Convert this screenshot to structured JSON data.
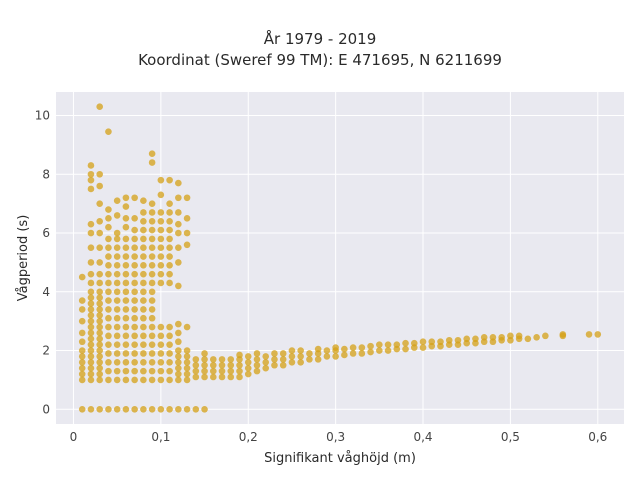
{
  "chart_data": {
    "type": "scatter",
    "title_line1": "År 1979 - 2019",
    "title_line2": "Koordinat (Sweref 99 TM): E 471695, N 6211699",
    "xlabel": "Signifikant våghöjd (m)",
    "ylabel": "Vågperiod (s)",
    "xlim": [
      -0.02,
      0.63
    ],
    "ylim": [
      -0.5,
      10.8
    ],
    "x_ticks": [
      0,
      0.1,
      0.2,
      0.3,
      0.4,
      0.5,
      0.6
    ],
    "x_tick_labels": [
      "0",
      "0,1",
      "0,2",
      "0,3",
      "0,4",
      "0,5",
      "0,6"
    ],
    "y_ticks": [
      0,
      2,
      4,
      6,
      8,
      10
    ],
    "y_tick_labels": [
      "0",
      "2",
      "4",
      "6",
      "8",
      "10"
    ],
    "grid": true,
    "plot_background": "#e9e9f0",
    "marker_color": "#d4a017",
    "points": [
      [
        0.01,
        0
      ],
      [
        0.02,
        0
      ],
      [
        0.03,
        0
      ],
      [
        0.04,
        0
      ],
      [
        0.05,
        0
      ],
      [
        0.06,
        0
      ],
      [
        0.07,
        0
      ],
      [
        0.08,
        0
      ],
      [
        0.09,
        0
      ],
      [
        0.1,
        0
      ],
      [
        0.11,
        0
      ],
      [
        0.12,
        0
      ],
      [
        0.13,
        0
      ],
      [
        0.14,
        0
      ],
      [
        0.15,
        0
      ],
      [
        0.01,
        1.0
      ],
      [
        0.01,
        1.2
      ],
      [
        0.01,
        1.4
      ],
      [
        0.01,
        1.6
      ],
      [
        0.01,
        1.8
      ],
      [
        0.01,
        2.0
      ],
      [
        0.01,
        2.3
      ],
      [
        0.01,
        2.6
      ],
      [
        0.01,
        3.0
      ],
      [
        0.01,
        3.4
      ],
      [
        0.01,
        3.7
      ],
      [
        0.01,
        4.5
      ],
      [
        0.02,
        1.0
      ],
      [
        0.02,
        1.2
      ],
      [
        0.02,
        1.4
      ],
      [
        0.02,
        1.6
      ],
      [
        0.02,
        1.8
      ],
      [
        0.02,
        2.0
      ],
      [
        0.02,
        2.2
      ],
      [
        0.02,
        2.4
      ],
      [
        0.02,
        2.6
      ],
      [
        0.02,
        2.8
      ],
      [
        0.02,
        3.0
      ],
      [
        0.02,
        3.2
      ],
      [
        0.02,
        3.4
      ],
      [
        0.02,
        3.6
      ],
      [
        0.02,
        3.8
      ],
      [
        0.02,
        4.0
      ],
      [
        0.02,
        4.3
      ],
      [
        0.02,
        4.6
      ],
      [
        0.02,
        5.0
      ],
      [
        0.02,
        5.5
      ],
      [
        0.02,
        6.0
      ],
      [
        0.02,
        6.3
      ],
      [
        0.02,
        7.5
      ],
      [
        0.02,
        7.8
      ],
      [
        0.02,
        8.0
      ],
      [
        0.02,
        8.3
      ],
      [
        0.03,
        1.0
      ],
      [
        0.03,
        1.2
      ],
      [
        0.03,
        1.4
      ],
      [
        0.03,
        1.6
      ],
      [
        0.03,
        1.8
      ],
      [
        0.03,
        2.0
      ],
      [
        0.03,
        2.2
      ],
      [
        0.03,
        2.4
      ],
      [
        0.03,
        2.6
      ],
      [
        0.03,
        2.8
      ],
      [
        0.03,
        3.0
      ],
      [
        0.03,
        3.2
      ],
      [
        0.03,
        3.4
      ],
      [
        0.03,
        3.6
      ],
      [
        0.03,
        3.8
      ],
      [
        0.03,
        4.0
      ],
      [
        0.03,
        4.3
      ],
      [
        0.03,
        4.6
      ],
      [
        0.03,
        5.0
      ],
      [
        0.03,
        5.5
      ],
      [
        0.03,
        6.0
      ],
      [
        0.03,
        6.4
      ],
      [
        0.03,
        7.0
      ],
      [
        0.03,
        7.6
      ],
      [
        0.03,
        8.0
      ],
      [
        0.03,
        10.3
      ],
      [
        0.04,
        1.0
      ],
      [
        0.04,
        1.3
      ],
      [
        0.04,
        1.6
      ],
      [
        0.04,
        1.9
      ],
      [
        0.04,
        2.2
      ],
      [
        0.04,
        2.5
      ],
      [
        0.04,
        2.8
      ],
      [
        0.04,
        3.1
      ],
      [
        0.04,
        3.4
      ],
      [
        0.04,
        3.7
      ],
      [
        0.04,
        4.0
      ],
      [
        0.04,
        4.3
      ],
      [
        0.04,
        4.6
      ],
      [
        0.04,
        4.9
      ],
      [
        0.04,
        5.2
      ],
      [
        0.04,
        5.5
      ],
      [
        0.04,
        5.8
      ],
      [
        0.04,
        6.2
      ],
      [
        0.04,
        6.5
      ],
      [
        0.04,
        6.8
      ],
      [
        0.04,
        9.45
      ],
      [
        0.05,
        1.0
      ],
      [
        0.05,
        1.3
      ],
      [
        0.05,
        1.6
      ],
      [
        0.05,
        1.9
      ],
      [
        0.05,
        2.2
      ],
      [
        0.05,
        2.5
      ],
      [
        0.05,
        2.8
      ],
      [
        0.05,
        3.1
      ],
      [
        0.05,
        3.4
      ],
      [
        0.05,
        3.7
      ],
      [
        0.05,
        4.0
      ],
      [
        0.05,
        4.3
      ],
      [
        0.05,
        4.6
      ],
      [
        0.05,
        4.9
      ],
      [
        0.05,
        5.2
      ],
      [
        0.05,
        5.5
      ],
      [
        0.05,
        5.8
      ],
      [
        0.05,
        6.0
      ],
      [
        0.05,
        6.6
      ],
      [
        0.05,
        7.1
      ],
      [
        0.06,
        1.0
      ],
      [
        0.06,
        1.3
      ],
      [
        0.06,
        1.6
      ],
      [
        0.06,
        1.9
      ],
      [
        0.06,
        2.2
      ],
      [
        0.06,
        2.5
      ],
      [
        0.06,
        2.8
      ],
      [
        0.06,
        3.1
      ],
      [
        0.06,
        3.4
      ],
      [
        0.06,
        3.7
      ],
      [
        0.06,
        4.0
      ],
      [
        0.06,
        4.3
      ],
      [
        0.06,
        4.6
      ],
      [
        0.06,
        4.9
      ],
      [
        0.06,
        5.2
      ],
      [
        0.06,
        5.5
      ],
      [
        0.06,
        5.8
      ],
      [
        0.06,
        6.2
      ],
      [
        0.06,
        6.5
      ],
      [
        0.06,
        6.9
      ],
      [
        0.06,
        7.2
      ],
      [
        0.07,
        1.0
      ],
      [
        0.07,
        1.3
      ],
      [
        0.07,
        1.6
      ],
      [
        0.07,
        1.9
      ],
      [
        0.07,
        2.2
      ],
      [
        0.07,
        2.5
      ],
      [
        0.07,
        2.8
      ],
      [
        0.07,
        3.1
      ],
      [
        0.07,
        3.4
      ],
      [
        0.07,
        3.7
      ],
      [
        0.07,
        4.0
      ],
      [
        0.07,
        4.3
      ],
      [
        0.07,
        4.6
      ],
      [
        0.07,
        4.9
      ],
      [
        0.07,
        5.2
      ],
      [
        0.07,
        5.5
      ],
      [
        0.07,
        5.8
      ],
      [
        0.07,
        6.1
      ],
      [
        0.07,
        6.5
      ],
      [
        0.07,
        7.2
      ],
      [
        0.08,
        1.0
      ],
      [
        0.08,
        1.3
      ],
      [
        0.08,
        1.6
      ],
      [
        0.08,
        1.9
      ],
      [
        0.08,
        2.2
      ],
      [
        0.08,
        2.5
      ],
      [
        0.08,
        2.8
      ],
      [
        0.08,
        3.1
      ],
      [
        0.08,
        3.4
      ],
      [
        0.08,
        3.7
      ],
      [
        0.08,
        4.0
      ],
      [
        0.08,
        4.3
      ],
      [
        0.08,
        4.6
      ],
      [
        0.08,
        4.9
      ],
      [
        0.08,
        5.2
      ],
      [
        0.08,
        5.5
      ],
      [
        0.08,
        5.8
      ],
      [
        0.08,
        6.1
      ],
      [
        0.08,
        6.4
      ],
      [
        0.08,
        6.7
      ],
      [
        0.08,
        7.1
      ],
      [
        0.09,
        1.0
      ],
      [
        0.09,
        1.3
      ],
      [
        0.09,
        1.6
      ],
      [
        0.09,
        1.9
      ],
      [
        0.09,
        2.2
      ],
      [
        0.09,
        2.5
      ],
      [
        0.09,
        2.8
      ],
      [
        0.09,
        3.1
      ],
      [
        0.09,
        3.4
      ],
      [
        0.09,
        3.7
      ],
      [
        0.09,
        4.0
      ],
      [
        0.09,
        4.3
      ],
      [
        0.09,
        4.6
      ],
      [
        0.09,
        4.9
      ],
      [
        0.09,
        5.2
      ],
      [
        0.09,
        5.5
      ],
      [
        0.09,
        5.8
      ],
      [
        0.09,
        6.1
      ],
      [
        0.09,
        6.4
      ],
      [
        0.09,
        6.7
      ],
      [
        0.09,
        7.0
      ],
      [
        0.09,
        8.4
      ],
      [
        0.09,
        8.7
      ],
      [
        0.1,
        1.0
      ],
      [
        0.1,
        1.3
      ],
      [
        0.1,
        1.6
      ],
      [
        0.1,
        1.9
      ],
      [
        0.1,
        2.2
      ],
      [
        0.1,
        2.5
      ],
      [
        0.1,
        2.8
      ],
      [
        0.1,
        4.3
      ],
      [
        0.1,
        4.6
      ],
      [
        0.1,
        4.9
      ],
      [
        0.1,
        5.2
      ],
      [
        0.1,
        5.5
      ],
      [
        0.1,
        5.8
      ],
      [
        0.1,
        6.1
      ],
      [
        0.1,
        6.4
      ],
      [
        0.1,
        6.7
      ],
      [
        0.1,
        7.3
      ],
      [
        0.1,
        7.8
      ],
      [
        0.11,
        1.0
      ],
      [
        0.11,
        1.3
      ],
      [
        0.11,
        1.6
      ],
      [
        0.11,
        1.9
      ],
      [
        0.11,
        2.2
      ],
      [
        0.11,
        2.5
      ],
      [
        0.11,
        2.8
      ],
      [
        0.11,
        4.3
      ],
      [
        0.11,
        4.6
      ],
      [
        0.11,
        4.9
      ],
      [
        0.11,
        5.2
      ],
      [
        0.11,
        5.5
      ],
      [
        0.11,
        5.8
      ],
      [
        0.11,
        6.1
      ],
      [
        0.11,
        6.4
      ],
      [
        0.11,
        6.7
      ],
      [
        0.11,
        7.0
      ],
      [
        0.11,
        7.8
      ],
      [
        0.12,
        1.0
      ],
      [
        0.12,
        1.2
      ],
      [
        0.12,
        1.4
      ],
      [
        0.12,
        1.6
      ],
      [
        0.12,
        1.8
      ],
      [
        0.12,
        2.0
      ],
      [
        0.12,
        2.3
      ],
      [
        0.12,
        2.6
      ],
      [
        0.12,
        2.9
      ],
      [
        0.12,
        4.2
      ],
      [
        0.12,
        5.0
      ],
      [
        0.12,
        5.5
      ],
      [
        0.12,
        6.0
      ],
      [
        0.12,
        6.3
      ],
      [
        0.12,
        6.7
      ],
      [
        0.12,
        7.2
      ],
      [
        0.12,
        7.7
      ],
      [
        0.13,
        1.0
      ],
      [
        0.13,
        1.2
      ],
      [
        0.13,
        1.4
      ],
      [
        0.13,
        1.6
      ],
      [
        0.13,
        1.8
      ],
      [
        0.13,
        2.0
      ],
      [
        0.13,
        2.8
      ],
      [
        0.13,
        5.6
      ],
      [
        0.13,
        6.0
      ],
      [
        0.13,
        6.5
      ],
      [
        0.13,
        7.2
      ],
      [
        0.14,
        1.1
      ],
      [
        0.14,
        1.3
      ],
      [
        0.14,
        1.5
      ],
      [
        0.14,
        1.7
      ],
      [
        0.15,
        1.1
      ],
      [
        0.15,
        1.3
      ],
      [
        0.15,
        1.5
      ],
      [
        0.15,
        1.7
      ],
      [
        0.15,
        1.9
      ],
      [
        0.16,
        1.1
      ],
      [
        0.16,
        1.3
      ],
      [
        0.16,
        1.5
      ],
      [
        0.16,
        1.7
      ],
      [
        0.17,
        1.1
      ],
      [
        0.17,
        1.3
      ],
      [
        0.17,
        1.5
      ],
      [
        0.17,
        1.7
      ],
      [
        0.18,
        1.1
      ],
      [
        0.18,
        1.3
      ],
      [
        0.18,
        1.5
      ],
      [
        0.18,
        1.7
      ],
      [
        0.19,
        1.1
      ],
      [
        0.19,
        1.3
      ],
      [
        0.19,
        1.5
      ],
      [
        0.19,
        1.7
      ],
      [
        0.19,
        1.85
      ],
      [
        0.2,
        1.2
      ],
      [
        0.2,
        1.4
      ],
      [
        0.2,
        1.6
      ],
      [
        0.2,
        1.8
      ],
      [
        0.21,
        1.3
      ],
      [
        0.21,
        1.5
      ],
      [
        0.21,
        1.7
      ],
      [
        0.21,
        1.9
      ],
      [
        0.22,
        1.4
      ],
      [
        0.22,
        1.6
      ],
      [
        0.22,
        1.8
      ],
      [
        0.23,
        1.5
      ],
      [
        0.23,
        1.7
      ],
      [
        0.23,
        1.9
      ],
      [
        0.24,
        1.5
      ],
      [
        0.24,
        1.7
      ],
      [
        0.24,
        1.9
      ],
      [
        0.25,
        1.6
      ],
      [
        0.25,
        1.8
      ],
      [
        0.25,
        2.0
      ],
      [
        0.26,
        1.6
      ],
      [
        0.26,
        1.8
      ],
      [
        0.26,
        2.0
      ],
      [
        0.27,
        1.7
      ],
      [
        0.27,
        1.9
      ],
      [
        0.28,
        1.7
      ],
      [
        0.28,
        1.9
      ],
      [
        0.28,
        2.05
      ],
      [
        0.29,
        1.8
      ],
      [
        0.29,
        2.0
      ],
      [
        0.3,
        1.8
      ],
      [
        0.3,
        2.0
      ],
      [
        0.3,
        2.1
      ],
      [
        0.31,
        1.85
      ],
      [
        0.31,
        2.05
      ],
      [
        0.32,
        1.9
      ],
      [
        0.32,
        2.1
      ],
      [
        0.33,
        1.9
      ],
      [
        0.33,
        2.1
      ],
      [
        0.34,
        1.95
      ],
      [
        0.34,
        2.15
      ],
      [
        0.35,
        2.0
      ],
      [
        0.35,
        2.2
      ],
      [
        0.36,
        2.0
      ],
      [
        0.36,
        2.2
      ],
      [
        0.37,
        2.05
      ],
      [
        0.37,
        2.2
      ],
      [
        0.38,
        2.05
      ],
      [
        0.38,
        2.25
      ],
      [
        0.39,
        2.1
      ],
      [
        0.39,
        2.25
      ],
      [
        0.4,
        2.1
      ],
      [
        0.4,
        2.3
      ],
      [
        0.41,
        2.15
      ],
      [
        0.41,
        2.3
      ],
      [
        0.42,
        2.15
      ],
      [
        0.42,
        2.3
      ],
      [
        0.43,
        2.2
      ],
      [
        0.43,
        2.35
      ],
      [
        0.44,
        2.2
      ],
      [
        0.44,
        2.35
      ],
      [
        0.45,
        2.25
      ],
      [
        0.45,
        2.4
      ],
      [
        0.46,
        2.25
      ],
      [
        0.46,
        2.4
      ],
      [
        0.47,
        2.3
      ],
      [
        0.47,
        2.45
      ],
      [
        0.48,
        2.3
      ],
      [
        0.48,
        2.45
      ],
      [
        0.49,
        2.35
      ],
      [
        0.49,
        2.45
      ],
      [
        0.5,
        2.35
      ],
      [
        0.5,
        2.5
      ],
      [
        0.51,
        2.4
      ],
      [
        0.51,
        2.5
      ],
      [
        0.52,
        2.4
      ],
      [
        0.53,
        2.45
      ],
      [
        0.54,
        2.5
      ],
      [
        0.56,
        2.5
      ],
      [
        0.56,
        2.55
      ],
      [
        0.59,
        2.55
      ],
      [
        0.6,
        2.55
      ]
    ]
  }
}
